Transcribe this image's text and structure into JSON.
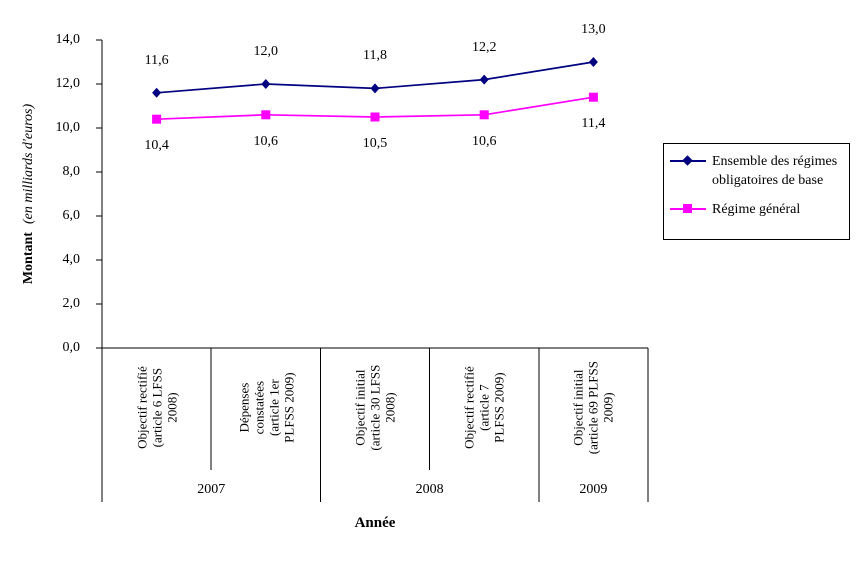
{
  "chart_data": {
    "type": "line",
    "title": "",
    "xlabel": "Année",
    "ylabel": "Montant",
    "ylabel_unit": "(en milliards d'euros)",
    "ylim": [
      0,
      14
    ],
    "grid": false,
    "legend_position": "right",
    "yticks": [
      0,
      2,
      4,
      6,
      8,
      10,
      12,
      14
    ],
    "ytick_labels": [
      "0,0",
      "2,0",
      "4,0",
      "6,0",
      "8,0",
      "10,0",
      "12,0",
      "14,0"
    ],
    "categories": [
      "Objectif rectifié\n(article 6 LFSS\n2008)",
      "Dépenses\nconstatées\n(article 1er\nPLFSS 2009)",
      "Objectif initial\n(article 30 LFSS\n2008)",
      "Objectif rectifié\n(article 7\nPLFSS 2009)",
      "Objectif initial\n(article 69 PLFSS\n2009)"
    ],
    "groups": [
      {
        "label": "2007",
        "span": 2
      },
      {
        "label": "2008",
        "span": 2
      },
      {
        "label": "2009",
        "span": 1
      }
    ],
    "series": [
      {
        "name": "Ensemble des régimes obligatoires de base",
        "color": "#000080",
        "marker": "diamond",
        "values": [
          11.6,
          12.0,
          11.8,
          12.2,
          13.0
        ],
        "labels": [
          "11,6",
          "12,0",
          "11,8",
          "12,2",
          "13,0"
        ],
        "label_side": "above"
      },
      {
        "name": "Régime général",
        "color": "#ff00ff",
        "marker": "square",
        "values": [
          10.4,
          10.6,
          10.5,
          10.6,
          11.4
        ],
        "labels": [
          "10,4",
          "10,6",
          "10,5",
          "10,6",
          "11,4"
        ],
        "label_side": "below"
      }
    ]
  }
}
